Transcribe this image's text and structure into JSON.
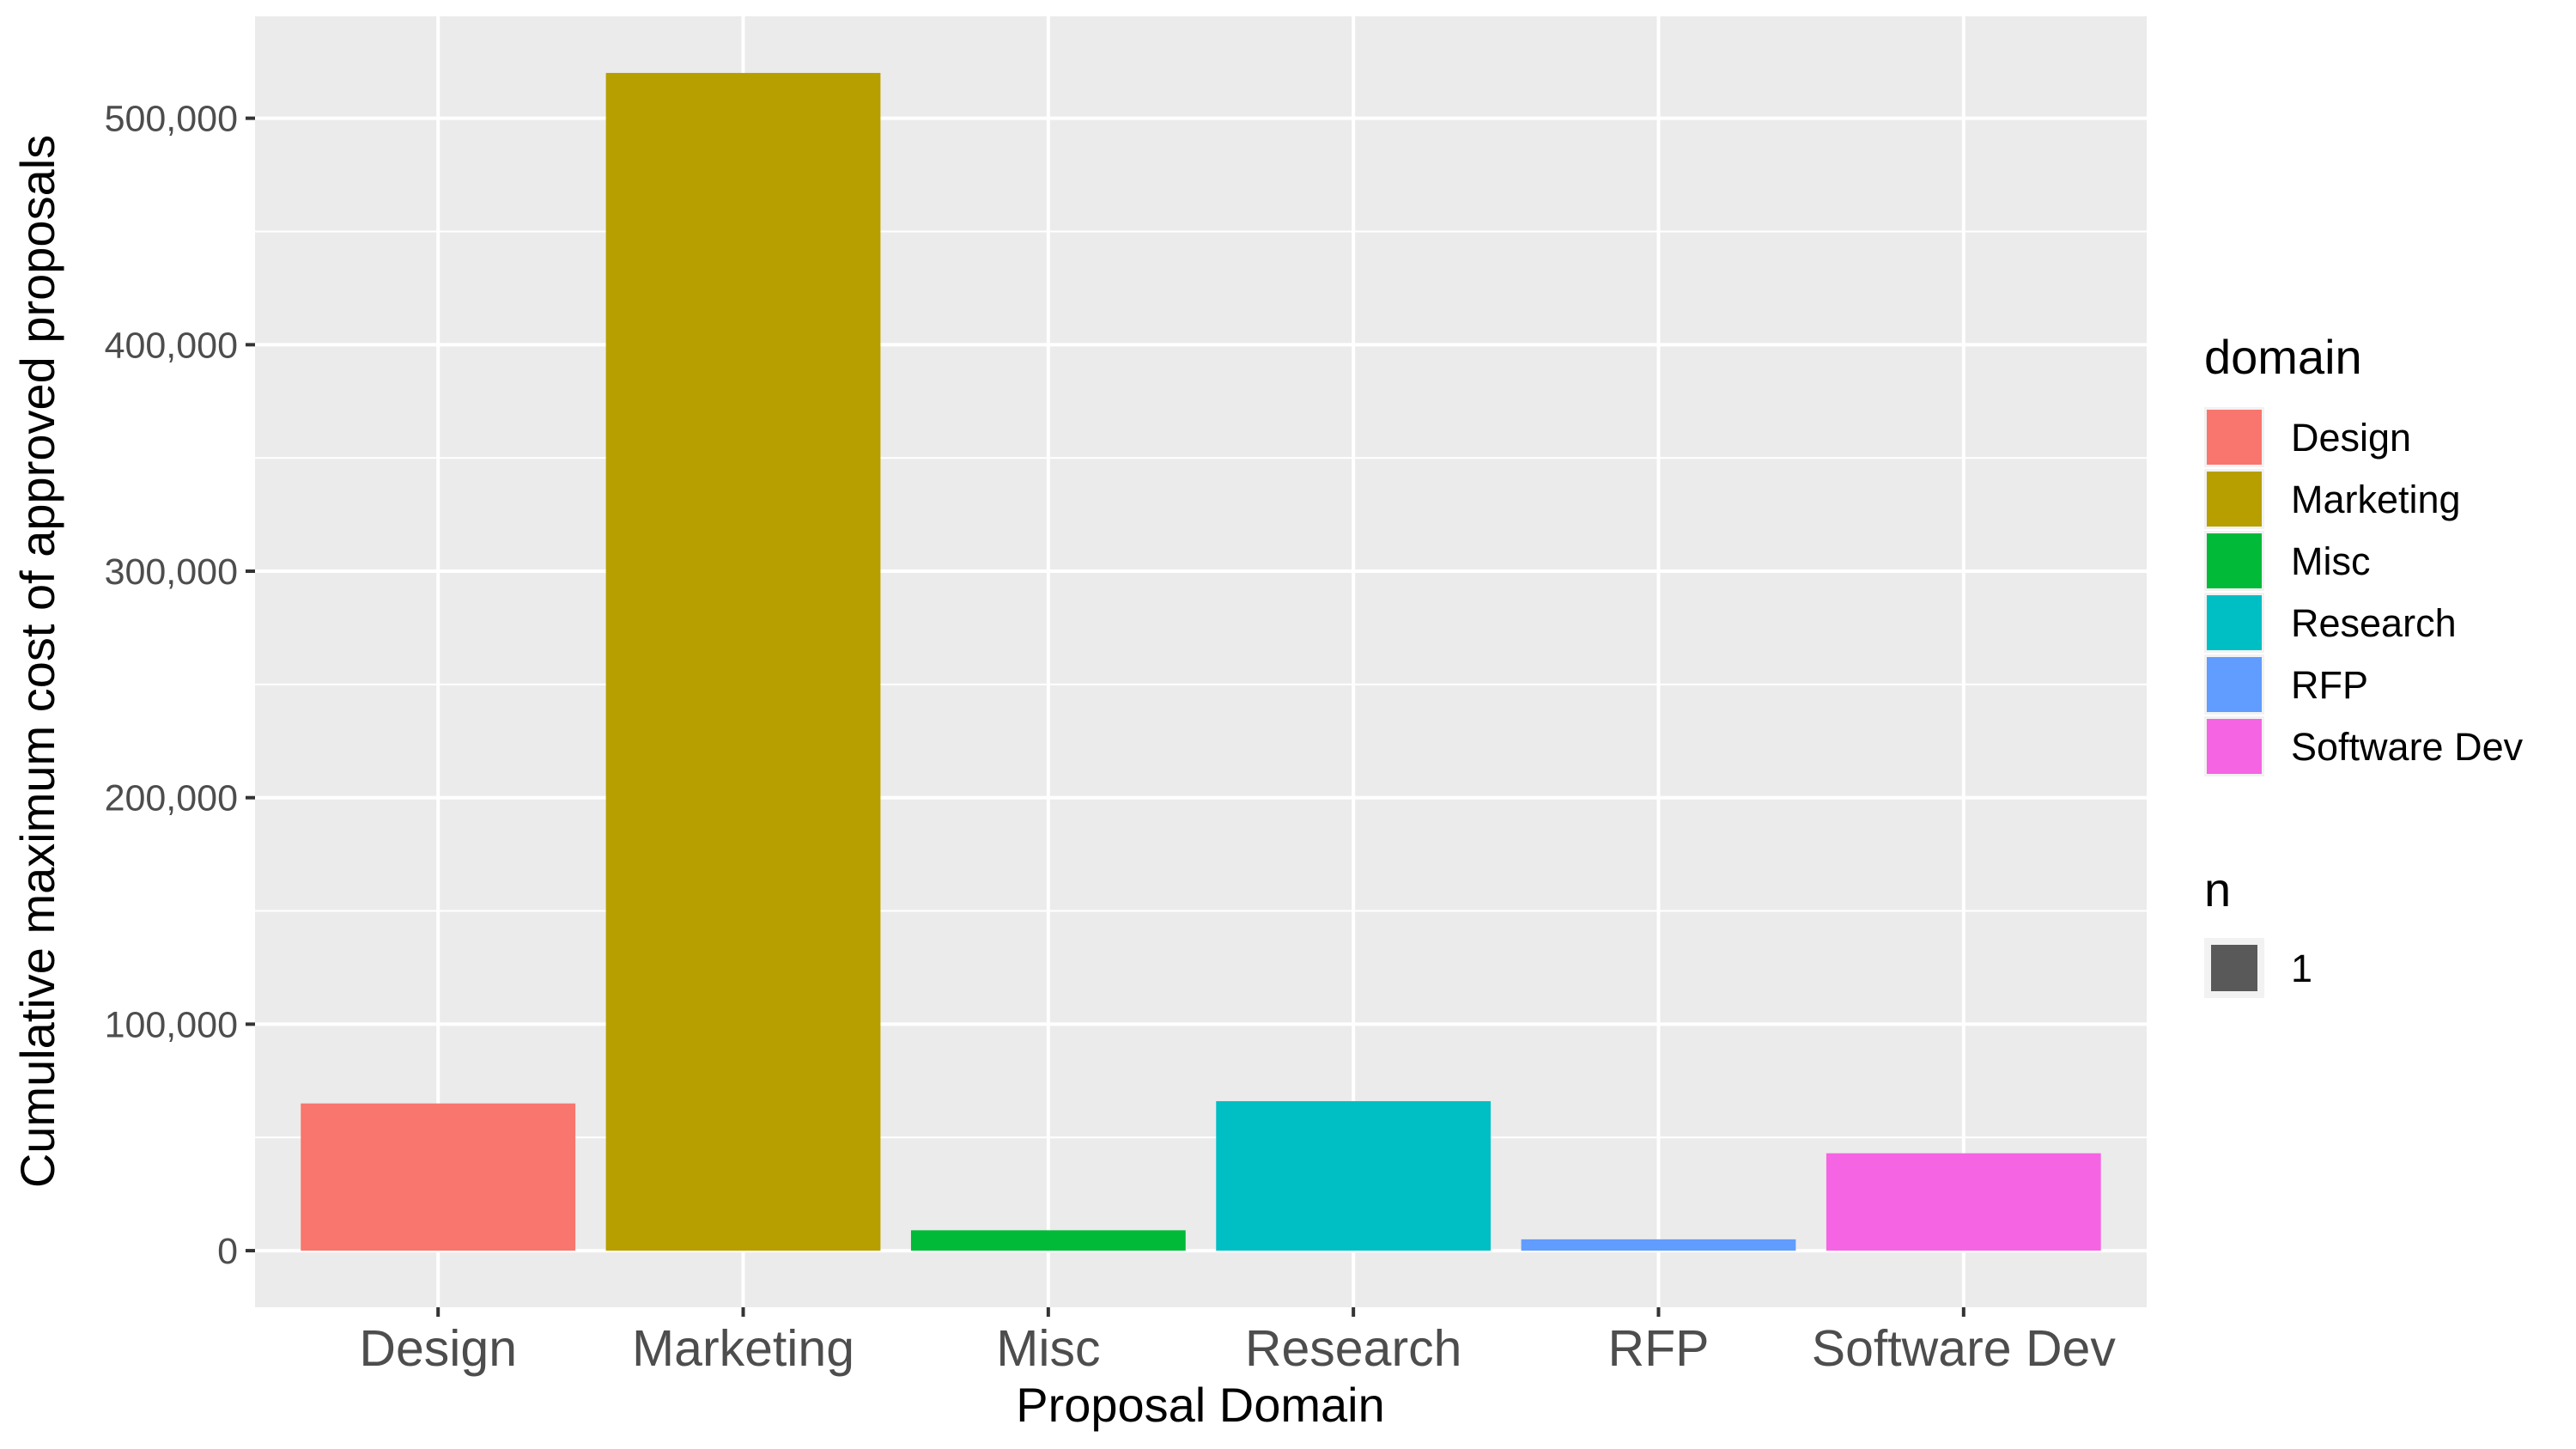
{
  "chart_data": {
    "type": "bar",
    "categories": [
      "Design",
      "Marketing",
      "Misc",
      "Research",
      "RFP",
      "Software Dev"
    ],
    "values": [
      65000,
      520000,
      9000,
      66000,
      5000,
      43000
    ],
    "colors": [
      "#F8766D",
      "#B79F00",
      "#00BA38",
      "#00BFC4",
      "#619CFF",
      "#F564E3"
    ],
    "xlabel": "Proposal Domain",
    "ylabel": "Cumulative maximum cost of approved proposals",
    "ylim": [
      -25000,
      545000
    ],
    "yticks": [
      0,
      100000,
      200000,
      300000,
      400000,
      500000
    ],
    "ytick_labels": [
      "0",
      "100,000",
      "200,000",
      "300,000",
      "400,000",
      "500,000"
    ],
    "grid": true,
    "panel_background": "#EBEBEB",
    "legend_position": "right",
    "legend": {
      "fill_title": "domain",
      "fill_items": [
        "Design",
        "Marketing",
        "Misc",
        "Research",
        "RFP",
        "Software Dev"
      ],
      "size_title": "n",
      "size_items": [
        "1"
      ],
      "size_color": "#595959"
    }
  }
}
